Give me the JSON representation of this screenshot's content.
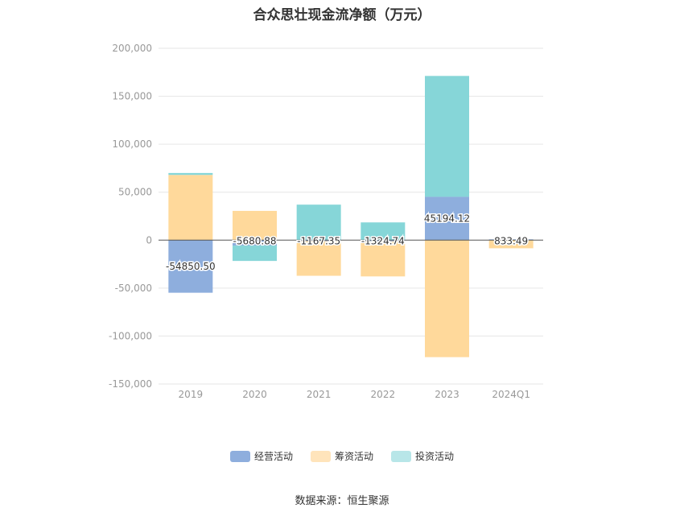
{
  "chart_data": {
    "type": "bar",
    "stacked": true,
    "title": "合众思壮现金流净额（万元）",
    "categories": [
      "2019",
      "2020",
      "2021",
      "2022",
      "2023",
      "2024Q1"
    ],
    "ylim": [
      -150000,
      200000
    ],
    "yticks": [
      200000,
      150000,
      100000,
      50000,
      0,
      -50000,
      -100000,
      -150000
    ],
    "ytick_labels": [
      "200,000",
      "150,000",
      "100,000",
      "50,000",
      "0",
      "-50,000",
      "-100,000",
      "-150,000"
    ],
    "grid": true,
    "legend_position": "bottom",
    "series": [
      {
        "name": "经营活动",
        "color": "#8eaedd",
        "values": [
          -54850.5,
          -5680.88,
          -1167.35,
          -1324.74,
          45194.12,
          833.49
        ],
        "labels": [
          "-54850.50",
          "-5680.88",
          "-1167.35",
          "-1324.74",
          "45194.12",
          "833.49"
        ]
      },
      {
        "name": "筹资活动",
        "color": "#ffd99b",
        "values": [
          68000,
          30500,
          -36000,
          -36500,
          -122000,
          -8500
        ]
      },
      {
        "name": "投资活动",
        "color": "#86d6d8",
        "values": [
          2000,
          -16000,
          37000,
          18500,
          126000,
          0
        ]
      }
    ]
  },
  "legend": {
    "items": [
      {
        "label": "经营活动",
        "color": "#8eaedd"
      },
      {
        "label": "筹资活动",
        "color": "#ffe4bb"
      },
      {
        "label": "投资活动",
        "color": "#b8e6e8"
      }
    ]
  },
  "source": "数据来源：恒生聚源"
}
